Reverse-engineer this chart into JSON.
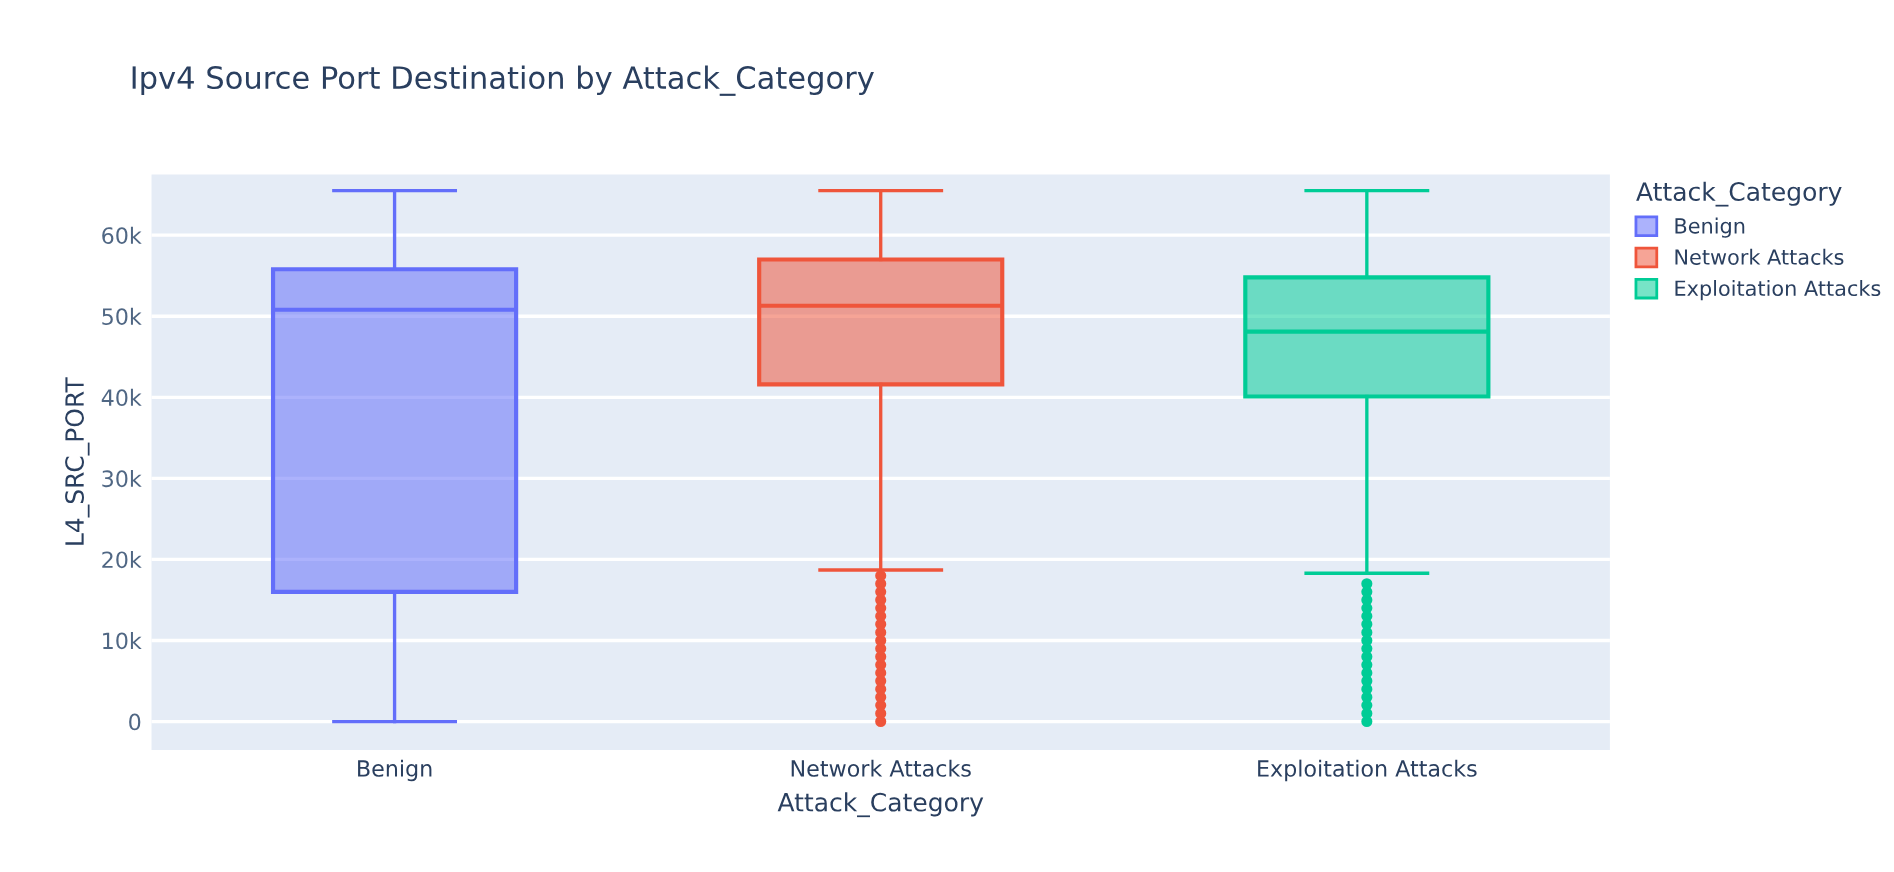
{
  "chart_data": {
    "type": "box",
    "title": "Ipv4 Source Port Destination by Attack_Category",
    "xlabel": "Attack_Category",
    "ylabel": "L4_SRC_PORT",
    "legend_title": "Attack_Category",
    "categories": [
      "Benign",
      "Network Attacks",
      "Exploitation Attacks"
    ],
    "series": [
      {
        "name": "Benign",
        "color": "#636efa",
        "boxes": [
          {
            "low": 0,
            "q1": 16000,
            "median": 50800,
            "q3": 55800,
            "high": 65500
          },
          null,
          null
        ]
      },
      {
        "name": "Network Attacks",
        "color": "#ef553b",
        "boxes": [
          null,
          {
            "low": 18700,
            "q1": 41600,
            "median": 51300,
            "q3": 57000,
            "high": 65500,
            "outliers": [
              0,
              1000,
              2000,
              3000,
              4000,
              5000,
              6000,
              7000,
              8000,
              9000,
              10000,
              11000,
              12000,
              13000,
              14000,
              15000,
              16000,
              17000,
              18000
            ]
          },
          null
        ]
      },
      {
        "name": "Exploitation Attacks",
        "color": "#00cc96",
        "boxes": [
          null,
          null,
          {
            "low": 18300,
            "q1": 40100,
            "median": 48100,
            "q3": 54800,
            "high": 65500,
            "outliers": [
              0,
              1000,
              2000,
              3000,
              4000,
              5000,
              6000,
              7000,
              8000,
              9000,
              10000,
              11000,
              12000,
              13000,
              14000,
              15000,
              16000,
              17000
            ]
          }
        ]
      }
    ],
    "ylim": [
      -3500,
      67500
    ],
    "yticks": [
      0,
      {
        "value": 10000,
        "label": "10k"
      },
      {
        "value": 20000,
        "label": "20k"
      },
      {
        "value": 30000,
        "label": "30k"
      },
      {
        "value": 40000,
        "label": "40k"
      },
      {
        "value": 50000,
        "label": "50k"
      },
      {
        "value": 60000,
        "label": "60k"
      }
    ],
    "grid": "y",
    "legend": "top right"
  }
}
